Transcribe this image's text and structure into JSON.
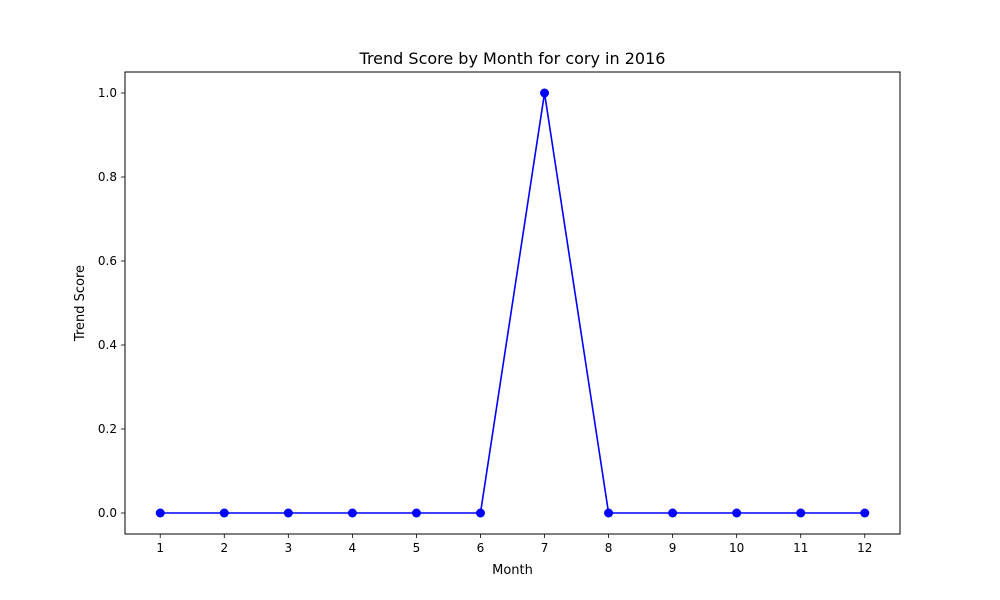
{
  "chart_data": {
    "type": "line",
    "title": "Trend Score by Month for cory in 2016",
    "xlabel": "Month",
    "ylabel": "Trend Score",
    "x": [
      1,
      2,
      3,
      4,
      5,
      6,
      7,
      8,
      9,
      10,
      11,
      12
    ],
    "xticks": [
      "1",
      "2",
      "3",
      "4",
      "5",
      "6",
      "7",
      "8",
      "9",
      "10",
      "11",
      "12"
    ],
    "yticks": [
      "0.0",
      "0.2",
      "0.4",
      "0.6",
      "0.8",
      "1.0"
    ],
    "ylim": [
      -0.05,
      1.05
    ],
    "xlim": [
      0.45,
      12.55
    ],
    "grid": false,
    "series": [
      {
        "values": [
          0,
          0,
          0,
          0,
          0,
          0,
          1,
          0,
          0,
          0,
          0,
          0
        ],
        "color": "#0000ff",
        "marker": "circle"
      }
    ]
  }
}
